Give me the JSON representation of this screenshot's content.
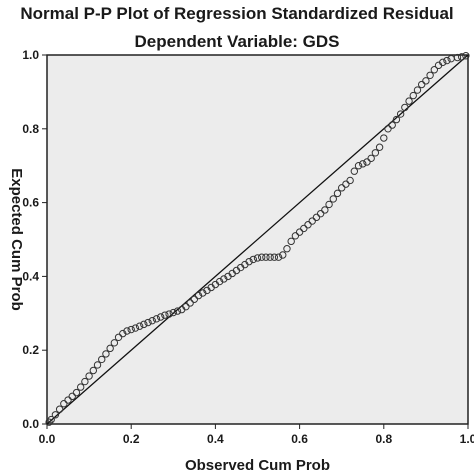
{
  "chart_data": {
    "type": "scatter",
    "title": "Normal P-P Plot of Regression Standardized Residual",
    "subtitle": "Dependent Variable: GDS",
    "xlabel": "Observed Cum Prob",
    "ylabel": "Expected Cum Prob",
    "xlim": [
      0.0,
      1.0
    ],
    "ylim": [
      0.0,
      1.0
    ],
    "x_ticks": [
      "0.0",
      "0.2",
      "0.4",
      "0.6",
      "0.8",
      "1.0"
    ],
    "y_ticks": [
      "0.0",
      "0.2",
      "0.4",
      "0.6",
      "0.8",
      "1.0"
    ],
    "grid": false,
    "reference_line": {
      "from": [
        0.0,
        0.0
      ],
      "to": [
        1.0,
        1.0
      ]
    },
    "colors": {
      "plot_background": "#ececec",
      "marker_stroke": "#333333",
      "line": "#111111"
    },
    "points": [
      [
        0.005,
        0.005
      ],
      [
        0.01,
        0.012
      ],
      [
        0.02,
        0.025
      ],
      [
        0.03,
        0.04
      ],
      [
        0.04,
        0.055
      ],
      [
        0.05,
        0.065
      ],
      [
        0.06,
        0.075
      ],
      [
        0.07,
        0.085
      ],
      [
        0.08,
        0.1
      ],
      [
        0.09,
        0.115
      ],
      [
        0.1,
        0.13
      ],
      [
        0.11,
        0.145
      ],
      [
        0.12,
        0.16
      ],
      [
        0.13,
        0.175
      ],
      [
        0.14,
        0.19
      ],
      [
        0.15,
        0.205
      ],
      [
        0.16,
        0.22
      ],
      [
        0.17,
        0.235
      ],
      [
        0.18,
        0.245
      ],
      [
        0.19,
        0.252
      ],
      [
        0.2,
        0.256
      ],
      [
        0.21,
        0.26
      ],
      [
        0.22,
        0.265
      ],
      [
        0.23,
        0.27
      ],
      [
        0.24,
        0.275
      ],
      [
        0.25,
        0.28
      ],
      [
        0.26,
        0.285
      ],
      [
        0.27,
        0.29
      ],
      [
        0.28,
        0.295
      ],
      [
        0.29,
        0.298
      ],
      [
        0.3,
        0.302
      ],
      [
        0.31,
        0.306
      ],
      [
        0.32,
        0.31
      ],
      [
        0.33,
        0.318
      ],
      [
        0.34,
        0.328
      ],
      [
        0.35,
        0.338
      ],
      [
        0.36,
        0.348
      ],
      [
        0.37,
        0.355
      ],
      [
        0.38,
        0.362
      ],
      [
        0.39,
        0.37
      ],
      [
        0.4,
        0.378
      ],
      [
        0.41,
        0.386
      ],
      [
        0.42,
        0.393
      ],
      [
        0.43,
        0.4
      ],
      [
        0.44,
        0.408
      ],
      [
        0.45,
        0.416
      ],
      [
        0.46,
        0.424
      ],
      [
        0.47,
        0.432
      ],
      [
        0.48,
        0.44
      ],
      [
        0.49,
        0.446
      ],
      [
        0.5,
        0.45
      ],
      [
        0.51,
        0.452
      ],
      [
        0.52,
        0.452
      ],
      [
        0.53,
        0.452
      ],
      [
        0.54,
        0.452
      ],
      [
        0.55,
        0.452
      ],
      [
        0.56,
        0.458
      ],
      [
        0.57,
        0.475
      ],
      [
        0.58,
        0.495
      ],
      [
        0.59,
        0.51
      ],
      [
        0.6,
        0.52
      ],
      [
        0.61,
        0.53
      ],
      [
        0.62,
        0.54
      ],
      [
        0.63,
        0.55
      ],
      [
        0.64,
        0.56
      ],
      [
        0.65,
        0.57
      ],
      [
        0.66,
        0.58
      ],
      [
        0.67,
        0.595
      ],
      [
        0.68,
        0.61
      ],
      [
        0.69,
        0.625
      ],
      [
        0.7,
        0.64
      ],
      [
        0.71,
        0.65
      ],
      [
        0.72,
        0.66
      ],
      [
        0.73,
        0.685
      ],
      [
        0.74,
        0.7
      ],
      [
        0.75,
        0.705
      ],
      [
        0.76,
        0.71
      ],
      [
        0.77,
        0.72
      ],
      [
        0.78,
        0.735
      ],
      [
        0.79,
        0.75
      ],
      [
        0.8,
        0.775
      ],
      [
        0.81,
        0.8
      ],
      [
        0.82,
        0.81
      ],
      [
        0.83,
        0.825
      ],
      [
        0.84,
        0.84
      ],
      [
        0.85,
        0.858
      ],
      [
        0.86,
        0.875
      ],
      [
        0.87,
        0.89
      ],
      [
        0.88,
        0.905
      ],
      [
        0.89,
        0.92
      ],
      [
        0.9,
        0.93
      ],
      [
        0.91,
        0.945
      ],
      [
        0.92,
        0.96
      ],
      [
        0.93,
        0.972
      ],
      [
        0.94,
        0.98
      ],
      [
        0.95,
        0.985
      ],
      [
        0.96,
        0.99
      ],
      [
        0.975,
        0.993
      ],
      [
        0.985,
        0.995
      ],
      [
        0.995,
        0.998
      ]
    ]
  }
}
